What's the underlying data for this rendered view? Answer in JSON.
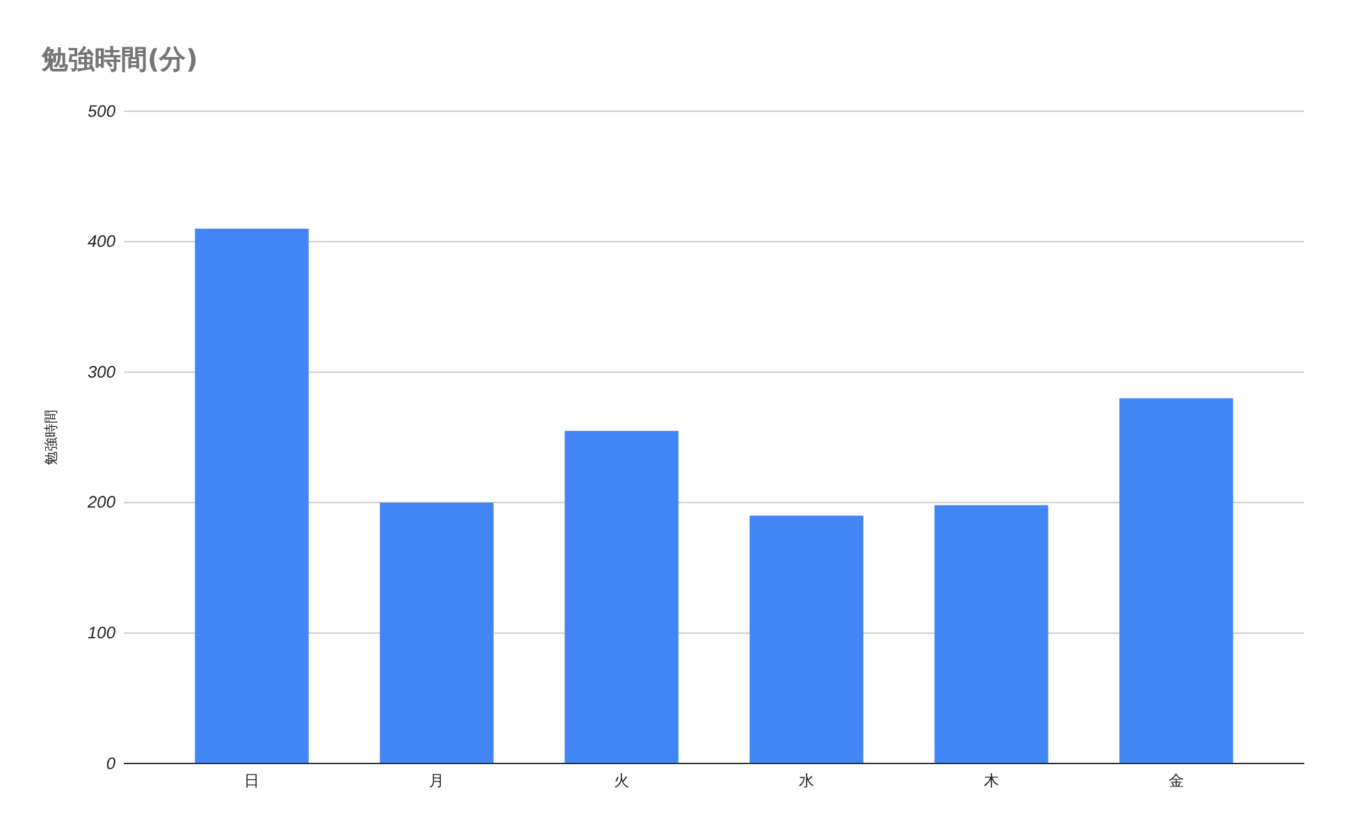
{
  "chart_data": {
    "type": "bar",
    "title": "勉強時間(分)",
    "ylabel": "勉強時間",
    "categories": [
      "日",
      "月",
      "火",
      "水",
      "木",
      "金"
    ],
    "values": [
      410,
      200,
      255,
      190,
      198,
      280
    ],
    "color": "#4285f4",
    "ylim": [
      0,
      500
    ],
    "yticks": [
      0,
      100,
      200,
      300,
      400,
      500
    ],
    "grid": "y"
  }
}
